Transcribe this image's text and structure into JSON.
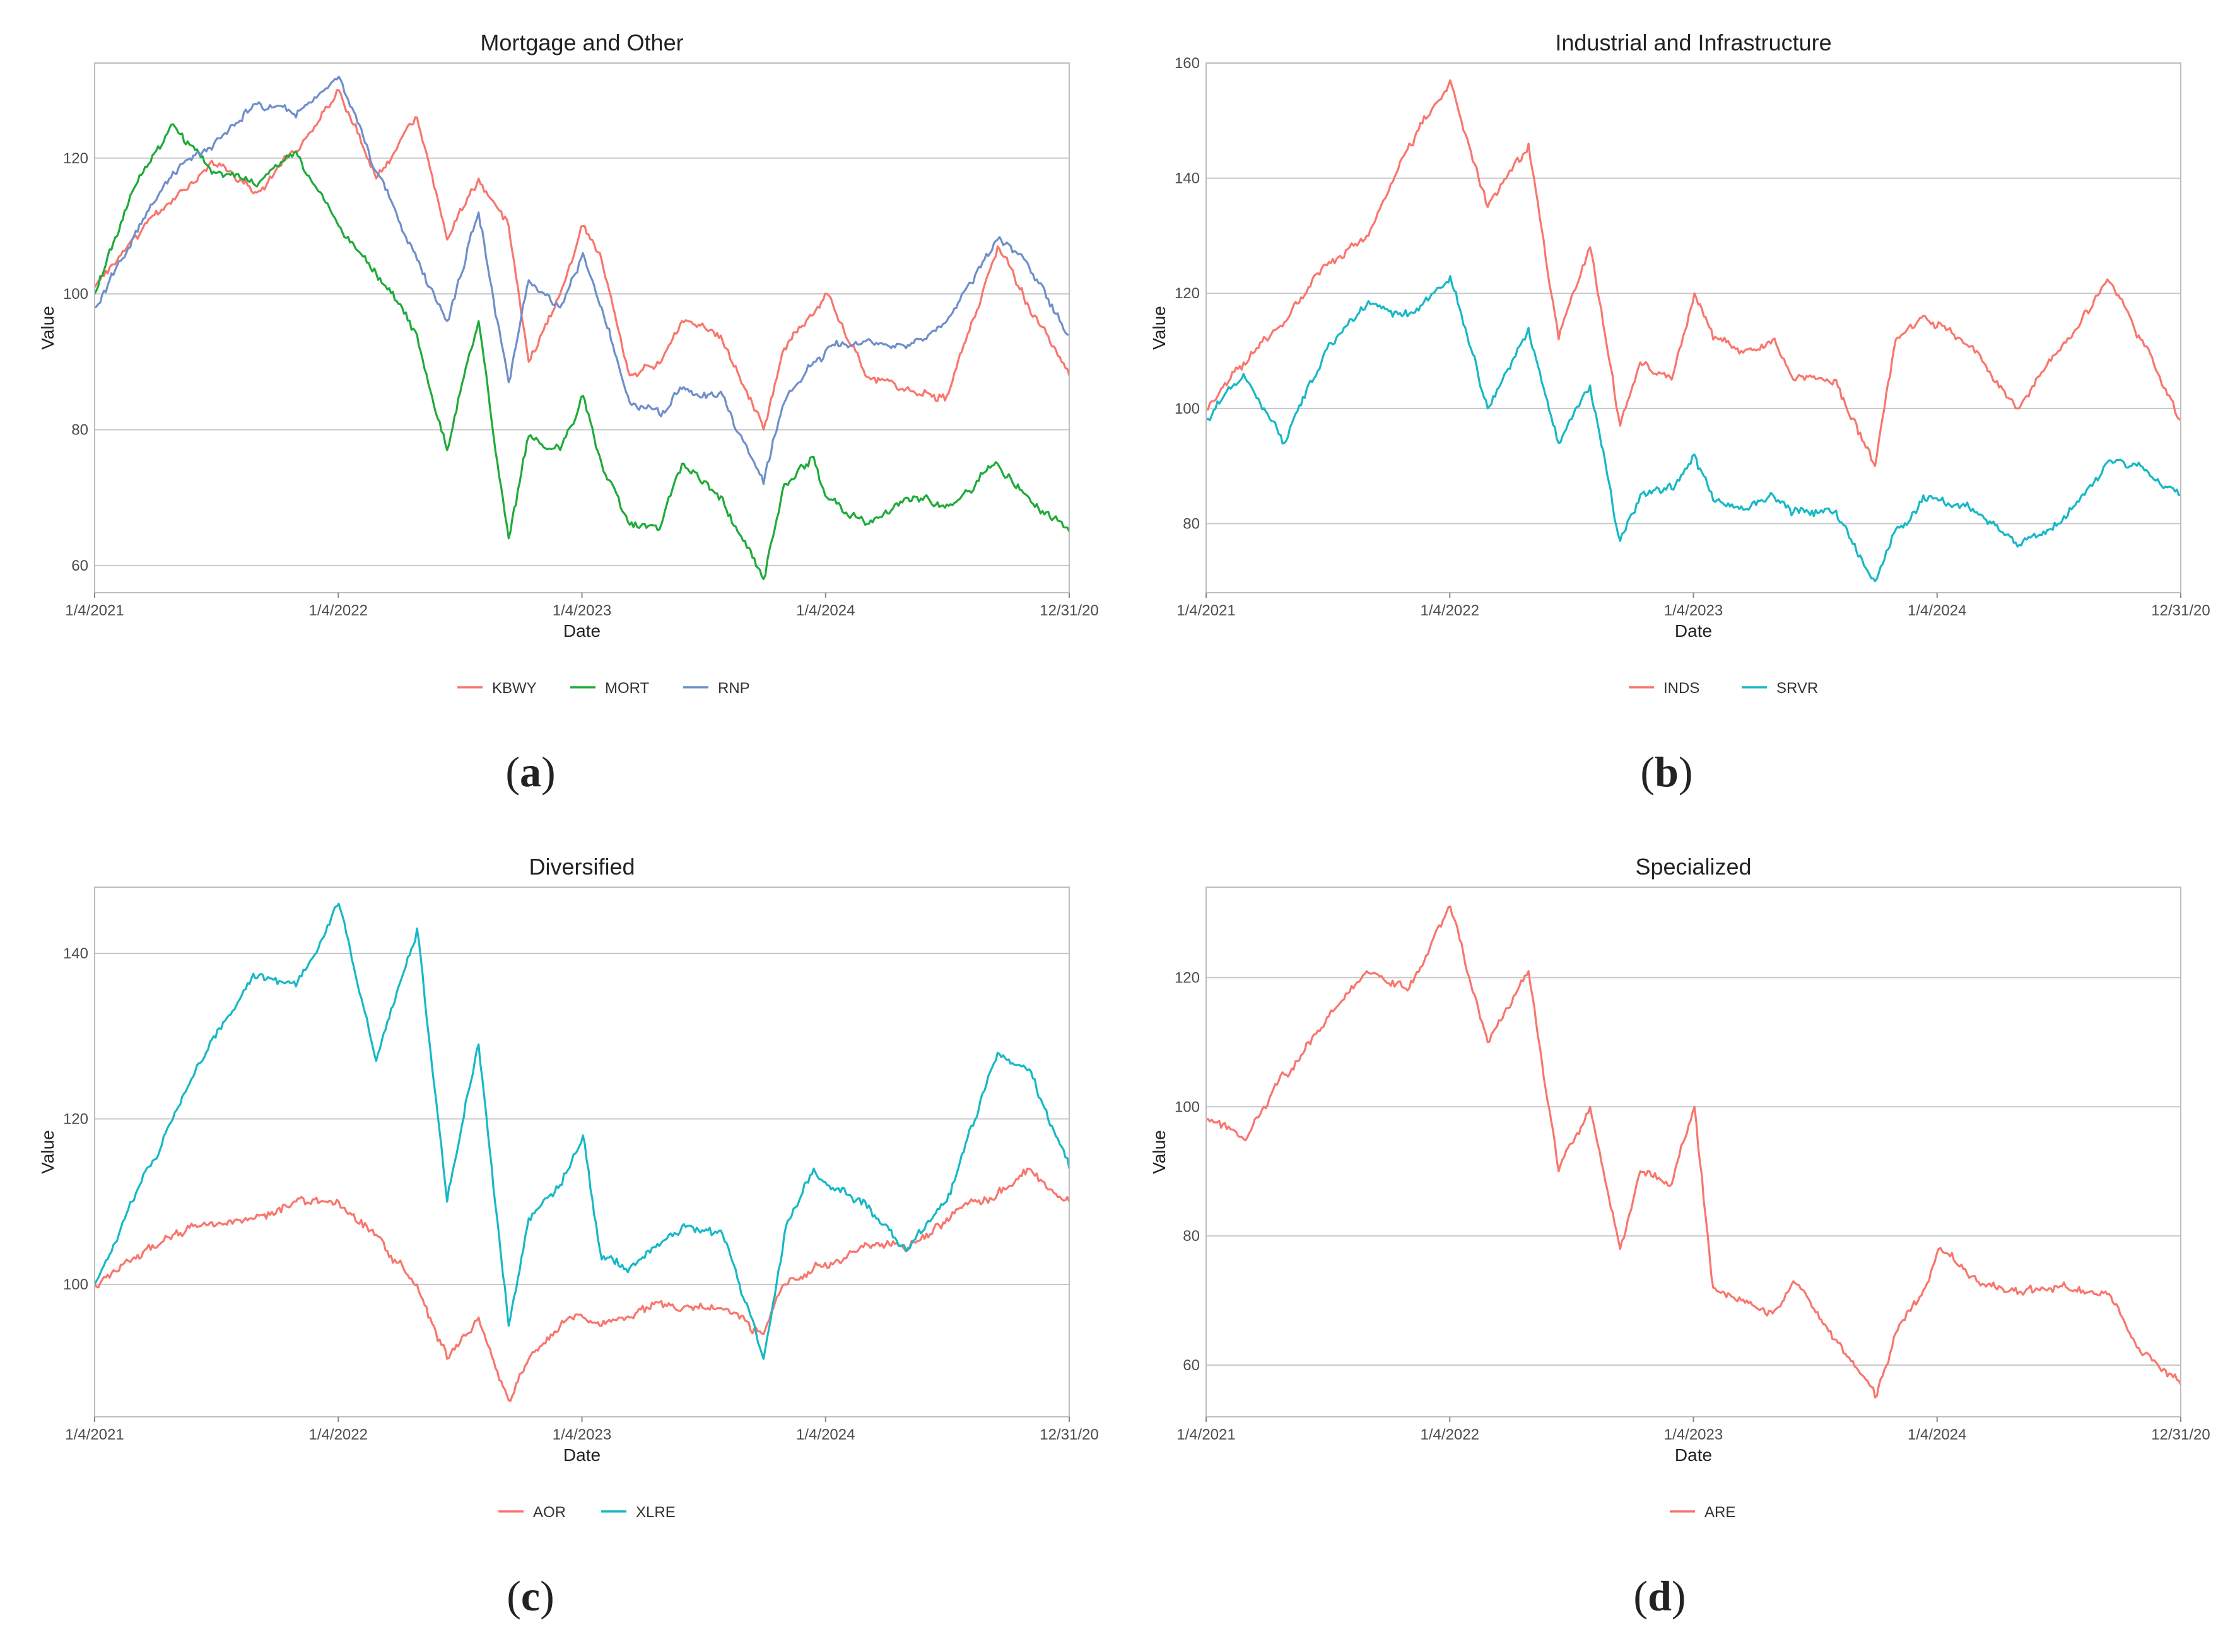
{
  "figure": {
    "x_tick_labels": [
      "1/4/2021",
      "1/4/2022",
      "1/4/2023",
      "1/4/2024",
      "12/31/20"
    ],
    "xlabel": "Date",
    "ylabel": "Value"
  },
  "chart_data": [
    {
      "id": "a",
      "type": "line",
      "panel_label": "a",
      "title": "Mortgage and Other",
      "xlabel": "Date",
      "ylabel": "Value",
      "x_ticks": [
        "1/4/2021",
        "1/4/2022",
        "1/4/2023",
        "1/4/2024",
        "12/31/20"
      ],
      "y_ticks": [
        60,
        80,
        100,
        120
      ],
      "ylim": [
        56,
        134
      ],
      "x_range": [
        "2021-01-04",
        "2024-12-31"
      ],
      "grid": true,
      "legend_position": "bottom",
      "series": [
        {
          "name": "KBWY",
          "color": "#F8766D",
          "x": [
            "2021-01-04",
            "2021-03-01",
            "2021-05-01",
            "2021-07-01",
            "2021-09-01",
            "2021-11-01",
            "2022-01-04",
            "2022-03-01",
            "2022-05-01",
            "2022-06-15",
            "2022-08-01",
            "2022-09-15",
            "2022-10-15",
            "2022-12-01",
            "2023-01-04",
            "2023-02-01",
            "2023-03-15",
            "2023-05-01",
            "2023-06-01",
            "2023-08-01",
            "2023-10-01",
            "2023-11-01",
            "2023-12-15",
            "2024-01-04",
            "2024-03-01",
            "2024-05-01",
            "2024-07-01",
            "2024-09-15",
            "2024-11-01",
            "2024-12-31"
          ],
          "values": [
            101,
            108,
            114,
            119,
            115,
            121,
            130,
            117,
            126,
            108,
            117,
            110,
            90,
            100,
            110,
            105,
            88,
            90,
            96,
            93,
            80,
            92,
            97,
            100,
            88,
            86,
            85,
            107,
            98,
            88
          ]
        },
        {
          "name": "MORT",
          "color": "#1FAA3A",
          "x": [
            "2021-01-04",
            "2021-03-01",
            "2021-05-01",
            "2021-07-01",
            "2021-09-01",
            "2021-11-01",
            "2022-01-04",
            "2022-03-01",
            "2022-05-01",
            "2022-06-15",
            "2022-08-01",
            "2022-09-15",
            "2022-10-15",
            "2022-12-01",
            "2023-01-04",
            "2023-02-01",
            "2023-03-15",
            "2023-05-01",
            "2023-06-01",
            "2023-08-01",
            "2023-10-01",
            "2023-11-01",
            "2023-12-15",
            "2024-01-04",
            "2024-03-01",
            "2024-05-01",
            "2024-07-01",
            "2024-09-15",
            "2024-11-01",
            "2024-12-31"
          ],
          "values": [
            100,
            115,
            125,
            118,
            116,
            121,
            110,
            103,
            94,
            77,
            96,
            64,
            79,
            77,
            85,
            75,
            66,
            66,
            75,
            70,
            58,
            72,
            76,
            70,
            66,
            70,
            69,
            75,
            70,
            65
          ]
        },
        {
          "name": "RNP",
          "color": "#6F8FCB",
          "x": [
            "2021-01-04",
            "2021-03-01",
            "2021-05-01",
            "2021-07-01",
            "2021-09-01",
            "2021-11-01",
            "2022-01-04",
            "2022-03-01",
            "2022-05-01",
            "2022-06-15",
            "2022-08-01",
            "2022-09-15",
            "2022-10-15",
            "2022-12-01",
            "2023-01-04",
            "2023-02-01",
            "2023-03-15",
            "2023-05-01",
            "2023-06-01",
            "2023-08-01",
            "2023-10-01",
            "2023-11-01",
            "2023-12-15",
            "2024-01-04",
            "2024-03-01",
            "2024-05-01",
            "2024-07-01",
            "2024-09-15",
            "2024-11-01",
            "2024-12-31"
          ],
          "values": [
            98,
            108,
            118,
            122,
            128,
            126,
            132,
            118,
            105,
            96,
            112,
            87,
            102,
            98,
            106,
            98,
            84,
            82,
            86,
            85,
            72,
            84,
            90,
            92,
            93,
            92,
            96,
            108,
            104,
            94
          ]
        }
      ]
    },
    {
      "id": "b",
      "type": "line",
      "panel_label": "b",
      "title": "Industrial and Infrastructure",
      "xlabel": "Date",
      "ylabel": "Value",
      "x_ticks": [
        "1/4/2021",
        "1/4/2022",
        "1/4/2023",
        "1/4/2024",
        "12/31/20"
      ],
      "y_ticks": [
        80,
        100,
        120,
        140,
        160
      ],
      "ylim": [
        68,
        160
      ],
      "x_range": [
        "2021-01-04",
        "2024-12-31"
      ],
      "grid": true,
      "legend_position": "bottom",
      "series": [
        {
          "name": "INDS",
          "color": "#F8766D",
          "x": [
            "2021-01-04",
            "2021-03-01",
            "2021-05-01",
            "2021-07-01",
            "2021-09-01",
            "2021-11-01",
            "2022-01-04",
            "2022-03-01",
            "2022-05-01",
            "2022-06-15",
            "2022-08-01",
            "2022-09-15",
            "2022-10-15",
            "2022-12-01",
            "2023-01-04",
            "2023-02-01",
            "2023-03-15",
            "2023-05-01",
            "2023-06-01",
            "2023-08-01",
            "2023-10-01",
            "2023-11-01",
            "2023-12-15",
            "2024-01-04",
            "2024-03-01",
            "2024-05-01",
            "2024-07-01",
            "2024-09-15",
            "2024-11-01",
            "2024-12-31"
          ],
          "values": [
            100,
            108,
            115,
            125,
            130,
            145,
            157,
            135,
            146,
            112,
            128,
            97,
            108,
            105,
            120,
            112,
            110,
            112,
            105,
            105,
            90,
            112,
            116,
            115,
            110,
            100,
            110,
            122,
            112,
            98
          ]
        },
        {
          "name": "SRVR",
          "color": "#17B8C6",
          "x": [
            "2021-01-04",
            "2021-03-01",
            "2021-05-01",
            "2021-07-01",
            "2021-09-01",
            "2021-11-01",
            "2022-01-04",
            "2022-03-01",
            "2022-05-01",
            "2022-06-15",
            "2022-08-01",
            "2022-09-15",
            "2022-10-15",
            "2022-12-01",
            "2023-01-04",
            "2023-02-01",
            "2023-03-15",
            "2023-05-01",
            "2023-06-01",
            "2023-08-01",
            "2023-10-01",
            "2023-11-01",
            "2023-12-15",
            "2024-01-04",
            "2024-03-01",
            "2024-05-01",
            "2024-07-01",
            "2024-09-15",
            "2024-11-01",
            "2024-12-31"
          ],
          "values": [
            98,
            106,
            94,
            110,
            118,
            116,
            123,
            100,
            114,
            94,
            104,
            77,
            85,
            86,
            92,
            84,
            83,
            85,
            82,
            82,
            70,
            79,
            84,
            84,
            82,
            76,
            80,
            91,
            90,
            85
          ]
        }
      ]
    },
    {
      "id": "c",
      "type": "line",
      "panel_label": "c",
      "title": "Diversified",
      "xlabel": "Date",
      "ylabel": "Value",
      "x_ticks": [
        "1/4/2021",
        "1/4/2022",
        "1/4/2023",
        "1/4/2024",
        "12/31/20"
      ],
      "y_ticks": [
        100,
        120,
        140
      ],
      "ylim": [
        84,
        148
      ],
      "x_range": [
        "2021-01-04",
        "2024-12-31"
      ],
      "grid": true,
      "legend_position": "bottom",
      "series": [
        {
          "name": "AOR",
          "color": "#F8766D",
          "x": [
            "2021-01-04",
            "2021-03-01",
            "2021-05-01",
            "2021-07-01",
            "2021-09-01",
            "2021-11-01",
            "2022-01-04",
            "2022-03-01",
            "2022-05-01",
            "2022-06-15",
            "2022-08-01",
            "2022-09-15",
            "2022-10-15",
            "2022-12-01",
            "2023-01-04",
            "2023-02-01",
            "2023-03-15",
            "2023-05-01",
            "2023-06-01",
            "2023-08-01",
            "2023-10-01",
            "2023-11-01",
            "2023-12-15",
            "2024-01-04",
            "2024-03-01",
            "2024-05-01",
            "2024-07-01",
            "2024-09-15",
            "2024-11-01",
            "2024-12-31"
          ],
          "values": [
            100,
            103,
            106,
            107,
            108,
            110,
            110,
            106,
            100,
            91,
            96,
            86,
            91,
            95,
            96,
            95,
            96,
            98,
            97,
            97,
            94,
            100,
            102,
            102,
            105,
            104,
            108,
            111,
            114,
            110
          ]
        },
        {
          "name": "XLRE",
          "color": "#17B8C6",
          "x": [
            "2021-01-04",
            "2021-03-01",
            "2021-05-01",
            "2021-07-01",
            "2021-09-01",
            "2021-11-01",
            "2022-01-04",
            "2022-03-01",
            "2022-05-01",
            "2022-06-15",
            "2022-08-01",
            "2022-09-15",
            "2022-10-15",
            "2022-12-01",
            "2023-01-04",
            "2023-02-01",
            "2023-03-15",
            "2023-05-01",
            "2023-06-01",
            "2023-08-01",
            "2023-10-01",
            "2023-11-01",
            "2023-12-15",
            "2024-01-04",
            "2024-03-01",
            "2024-05-01",
            "2024-07-01",
            "2024-09-15",
            "2024-11-01",
            "2024-12-31"
          ],
          "values": [
            100,
            110,
            120,
            130,
            137,
            136,
            146,
            127,
            143,
            110,
            129,
            95,
            108,
            112,
            118,
            103,
            102,
            105,
            107,
            106,
            91,
            106,
            114,
            112,
            110,
            104,
            110,
            128,
            126,
            114
          ]
        }
      ]
    },
    {
      "id": "d",
      "type": "line",
      "panel_label": "d",
      "title": "Specialized",
      "xlabel": "Date",
      "ylabel": "Value",
      "x_ticks": [
        "1/4/2021",
        "1/4/2022",
        "1/4/2023",
        "1/4/2024",
        "12/31/20"
      ],
      "y_ticks": [
        60,
        80,
        100,
        120
      ],
      "ylim": [
        52,
        134
      ],
      "x_range": [
        "2021-01-04",
        "2024-12-31"
      ],
      "grid": true,
      "legend_position": "bottom",
      "series": [
        {
          "name": "ARE",
          "color": "#F8766D",
          "x": [
            "2021-01-04",
            "2021-03-01",
            "2021-05-01",
            "2021-07-01",
            "2021-09-01",
            "2021-11-01",
            "2022-01-04",
            "2022-03-01",
            "2022-05-01",
            "2022-06-15",
            "2022-08-01",
            "2022-09-15",
            "2022-10-15",
            "2022-12-01",
            "2023-01-04",
            "2023-02-01",
            "2023-03-15",
            "2023-05-01",
            "2023-06-01",
            "2023-08-01",
            "2023-10-01",
            "2023-11-01",
            "2023-12-15",
            "2024-01-04",
            "2024-03-01",
            "2024-05-01",
            "2024-07-01",
            "2024-09-15",
            "2024-11-01",
            "2024-12-31"
          ],
          "values": [
            98,
            95,
            105,
            113,
            121,
            118,
            131,
            110,
            121,
            90,
            100,
            78,
            90,
            88,
            100,
            72,
            70,
            68,
            73,
            64,
            55,
            65,
            72,
            78,
            73,
            71,
            72,
            71,
            62,
            57
          ]
        }
      ]
    }
  ]
}
